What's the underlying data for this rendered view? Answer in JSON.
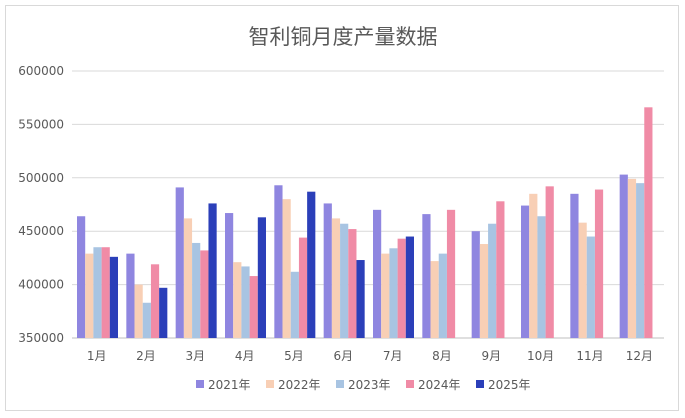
{
  "chart_data": {
    "type": "bar",
    "title": "智利铜月度产量数据",
    "xlabel": "",
    "ylabel": "",
    "categories": [
      "1月",
      "2月",
      "3月",
      "4月",
      "5月",
      "6月",
      "7月",
      "8月",
      "9月",
      "10月",
      "11月",
      "12月"
    ],
    "ylim": [
      350000,
      600000
    ],
    "yticks": [
      "350000",
      "400000",
      "450000",
      "500000",
      "550000",
      "600000"
    ],
    "grid": true,
    "legend_position": "bottom",
    "series": [
      {
        "name": "2021年",
        "color": "#8f86e0",
        "values": [
          464000,
          429000,
          491000,
          467000,
          493000,
          476000,
          470000,
          466000,
          450000,
          474000,
          485000,
          503000
        ]
      },
      {
        "name": "2022年",
        "color": "#f8cfb5",
        "values": [
          429000,
          400000,
          462000,
          421000,
          480000,
          462000,
          429000,
          422000,
          438000,
          485000,
          458000,
          499000
        ]
      },
      {
        "name": "2023年",
        "color": "#a8c4e2",
        "values": [
          435000,
          383000,
          439000,
          417000,
          412000,
          457000,
          434000,
          429000,
          457000,
          464000,
          445000,
          495000
        ]
      },
      {
        "name": "2024年",
        "color": "#f08ba6",
        "values": [
          435000,
          419000,
          432000,
          408000,
          444000,
          452000,
          443000,
          470000,
          478000,
          492000,
          489000,
          566000
        ]
      },
      {
        "name": "2025年",
        "color": "#2b3fb9",
        "values": [
          426000,
          397000,
          476000,
          463000,
          487000,
          423000,
          445000,
          null,
          null,
          null,
          null,
          null
        ]
      }
    ]
  }
}
